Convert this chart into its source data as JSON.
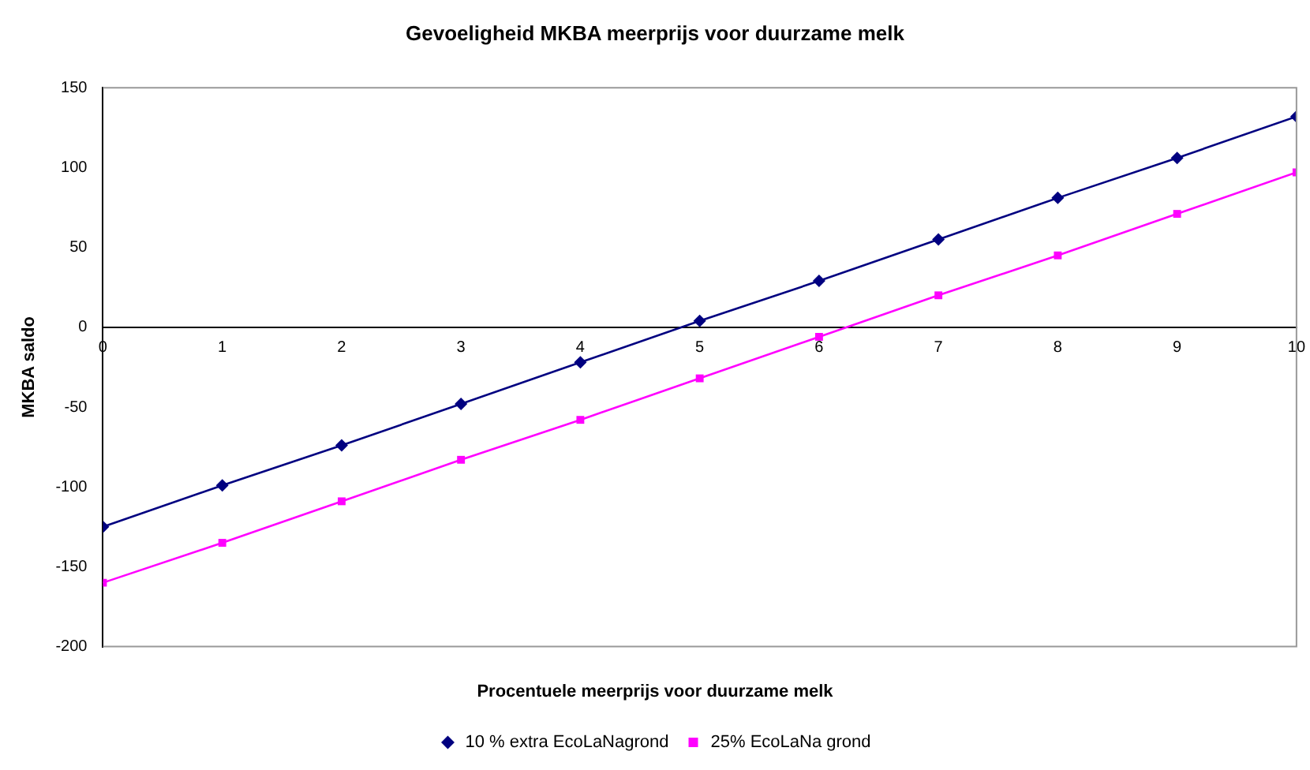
{
  "chart_data": {
    "type": "line",
    "title": "Gevoeligheid MKBA meerprijs voor duurzame melk",
    "xlabel": "Procentuele meerprijs voor duurzame melk",
    "ylabel": "MKBA saldo",
    "x": [
      0,
      1,
      2,
      3,
      4,
      5,
      6,
      7,
      8,
      9,
      10
    ],
    "series": [
      {
        "name": "10 % extra EcoLaNagrond",
        "color": "#000080",
        "marker": "diamond",
        "values": [
          -125,
          -99,
          -74,
          -48,
          -22,
          4,
          29,
          55,
          81,
          106,
          132
        ]
      },
      {
        "name": "25% EcoLaNa grond",
        "color": "#ff00ff",
        "marker": "square",
        "values": [
          -160,
          -135,
          -109,
          -83,
          -58,
          -32,
          -6,
          20,
          45,
          71,
          97
        ]
      }
    ],
    "xlim": [
      0,
      10
    ],
    "xticks": [
      0,
      1,
      2,
      3,
      4,
      5,
      6,
      7,
      8,
      9,
      10
    ],
    "ylim": [
      -200,
      150
    ],
    "yticks": [
      -200,
      -150,
      -100,
      -50,
      0,
      50,
      100,
      150
    ],
    "grid": false,
    "legend": "bottom",
    "line_style": "solid"
  }
}
